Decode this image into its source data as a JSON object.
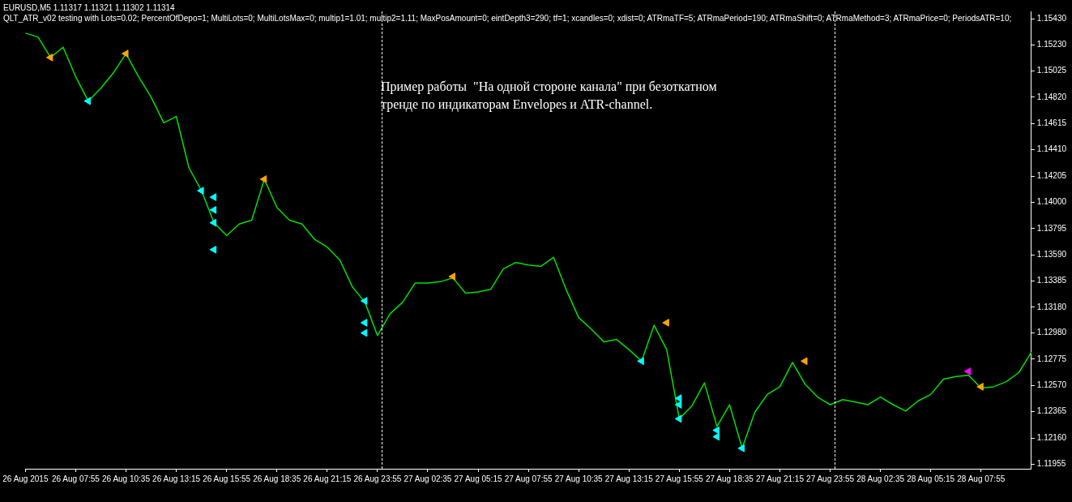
{
  "chart_data": {
    "type": "line",
    "title": "EURUSD,M5  1.11317 1.11321 1.11302 1.11314",
    "subtitle": "QLT_ATR_v02 testing with Lots=0.02; PercentOfDepo=1; MultiLots=0; MultiLotsMax=0; multip1=1.01; multip2=1.11; MaxPosAmount=0; eintDepth3=290; tf=1; xcandles=0; xdist=0; ATRmaTF=5; ATRmaPeriod=190; ATRmaShift=0; ATRmaMethod=3; ATRmaPrice=0; PeriodsATR=10;",
    "annotations": [
      "Пример работы  \"На одной стороне канала\" при безоткатном\nтренде по индикаторам Envelopes и ATR-channel."
    ],
    "categories": [
      "26 Aug 2015",
      null,
      null,
      null,
      "26 Aug 07:55",
      null,
      null,
      null,
      "26 Aug 10:35",
      null,
      null,
      null,
      "26 Aug 13:15",
      null,
      null,
      null,
      "26 Aug 15:55",
      null,
      null,
      null,
      "26 Aug 18:35",
      null,
      null,
      null,
      "26 Aug 21:15",
      null,
      null,
      null,
      "26 Aug 23:55",
      null,
      null,
      null,
      "27 Aug 02:35",
      null,
      null,
      null,
      "27 Aug 05:15",
      null,
      null,
      null,
      "27 Aug 07:55",
      null,
      null,
      null,
      "27 Aug 10:35",
      null,
      null,
      null,
      "27 Aug 13:15",
      null,
      null,
      null,
      "27 Aug 15:55",
      null,
      null,
      null,
      "27 Aug 18:35",
      null,
      null,
      null,
      "27 Aug 21:15",
      null,
      null,
      null,
      "27 Aug 23:55",
      null,
      null,
      null,
      "28 Aug 02:35",
      null,
      null,
      null,
      "28 Aug 05:15",
      null,
      null,
      null,
      "28 Aug 07:55",
      null,
      null,
      null,
      null
    ],
    "ylim": [
      1.1192,
      1.1549
    ],
    "yticks": [
      {
        "value": 1.1543,
        "label": "1.15430"
      },
      {
        "value": 1.1523,
        "label": "1.15230"
      },
      {
        "value": 1.15025,
        "label": "1.15025"
      },
      {
        "value": 1.1482,
        "label": "1.14820"
      },
      {
        "value": 1.14615,
        "label": "1.14615"
      },
      {
        "value": 1.1441,
        "label": "1.14410"
      },
      {
        "value": 1.14205,
        "label": "1.14205"
      },
      {
        "value": 1.14,
        "label": "1.14000"
      },
      {
        "value": 1.13795,
        "label": "1.13795"
      },
      {
        "value": 1.1359,
        "label": "1.13590"
      },
      {
        "value": 1.13385,
        "label": "1.13385"
      },
      {
        "value": 1.1318,
        "label": "1.13180"
      },
      {
        "value": 1.1298,
        "label": "1.12980"
      },
      {
        "value": 1.12775,
        "label": "1.12775"
      },
      {
        "value": 1.1257,
        "label": "1.12570"
      },
      {
        "value": 1.12365,
        "label": "1.12365"
      },
      {
        "value": 1.1216,
        "label": "1.12160"
      },
      {
        "value": 1.11955,
        "label": "1.11955"
      }
    ],
    "grid": false,
    "legend": false,
    "series": [
      {
        "type": "line",
        "color": "#00e000",
        "marker": "none",
        "values": [
          1.1532,
          1.1529,
          1.1513,
          1.1521,
          1.1498,
          1.1479,
          1.1489,
          1.1501,
          1.1516,
          1.1498,
          1.1482,
          1.1462,
          1.1467,
          1.1427,
          1.1409,
          1.1384,
          1.1374,
          1.1383,
          1.1386,
          1.1418,
          1.1396,
          1.1386,
          1.1383,
          1.1371,
          1.1365,
          1.1355,
          1.1334,
          1.1322,
          1.1296,
          1.1313,
          1.1322,
          1.1337,
          1.1337,
          1.1338,
          1.1341,
          1.1329,
          1.133,
          1.1332,
          1.1348,
          1.1353,
          1.1351,
          1.135,
          1.1357,
          1.1332,
          1.131,
          1.1301,
          1.1291,
          1.1293,
          1.1285,
          1.1276,
          1.1304,
          1.1285,
          1.1231,
          1.1241,
          1.1259,
          1.1225,
          1.1242,
          1.1208,
          1.1236,
          1.125,
          1.1256,
          1.1275,
          1.1258,
          1.1248,
          1.1242,
          1.1246,
          1.1244,
          1.1242,
          1.1248,
          1.1242,
          1.1237,
          1.1245,
          1.125,
          1.1262,
          1.1264,
          1.1265,
          1.1255,
          1.1256,
          1.126,
          1.1267,
          1.1283
        ]
      },
      {
        "type": "scatter",
        "color": "#ffa500",
        "marker": "triangle",
        "values": [
          null,
          null,
          1.1513,
          null,
          null,
          null,
          null,
          null,
          1.1516,
          null,
          null,
          null,
          null,
          null,
          null,
          null,
          null,
          null,
          null,
          1.1418,
          null,
          null,
          null,
          null,
          null,
          null,
          null,
          null,
          null,
          null,
          null,
          null,
          null,
          null,
          1.1342,
          null,
          null,
          null,
          null,
          null,
          null,
          null,
          null,
          null,
          null,
          null,
          null,
          null,
          null,
          null,
          null,
          1.1306,
          null,
          null,
          null,
          null,
          null,
          null,
          null,
          null,
          null,
          null,
          1.1276,
          null,
          null,
          null,
          null,
          null,
          null,
          null,
          null,
          null,
          null,
          null,
          null,
          null,
          1.1256,
          null,
          null,
          null,
          null
        ]
      },
      {
        "type": "scatter",
        "color": "#00ffff",
        "marker": "triangle",
        "values": [
          null,
          null,
          null,
          null,
          null,
          1.1479,
          null,
          null,
          null,
          null,
          null,
          null,
          null,
          null,
          1.1409,
          1.1404,
          null,
          null,
          null,
          null,
          null,
          null,
          null,
          null,
          null,
          null,
          null,
          1.1323,
          null,
          null,
          null,
          null,
          null,
          null,
          null,
          null,
          null,
          null,
          null,
          null,
          null,
          null,
          null,
          null,
          null,
          null,
          null,
          null,
          null,
          1.1276,
          null,
          null,
          1.1247,
          null,
          null,
          1.1222,
          null,
          1.1208,
          null,
          null,
          null,
          null,
          null,
          null,
          null,
          null,
          null,
          null,
          null,
          null,
          null,
          null,
          null,
          null,
          null,
          null,
          null,
          null,
          null,
          null,
          null
        ]
      },
      {
        "type": "scatter",
        "color": "#00ffff",
        "marker": "triangle",
        "values": [
          null,
          null,
          null,
          null,
          null,
          null,
          null,
          null,
          null,
          null,
          null,
          null,
          null,
          null,
          null,
          1.1394,
          null,
          null,
          null,
          null,
          null,
          null,
          null,
          null,
          null,
          null,
          null,
          1.1306,
          null,
          null,
          null,
          null,
          null,
          null,
          null,
          null,
          null,
          null,
          null,
          null,
          null,
          null,
          null,
          null,
          null,
          null,
          null,
          null,
          null,
          null,
          null,
          null,
          1.1242,
          null,
          null,
          1.1217,
          null,
          null,
          null,
          null,
          null,
          null,
          null,
          null,
          null,
          null,
          null,
          null,
          null,
          null,
          null,
          null,
          null,
          null,
          null,
          null,
          null,
          null,
          null,
          null,
          null
        ]
      },
      {
        "type": "scatter",
        "color": "#00ffff",
        "marker": "triangle",
        "values": [
          null,
          null,
          null,
          null,
          null,
          null,
          null,
          null,
          null,
          null,
          null,
          null,
          null,
          null,
          null,
          1.1384,
          null,
          null,
          null,
          null,
          null,
          null,
          null,
          null,
          null,
          null,
          null,
          1.1298,
          null,
          null,
          null,
          null,
          null,
          null,
          null,
          null,
          null,
          null,
          null,
          null,
          null,
          null,
          null,
          null,
          null,
          null,
          null,
          null,
          null,
          null,
          null,
          null,
          1.1231,
          null,
          null,
          null,
          null,
          null,
          null,
          null,
          null,
          null,
          null,
          null,
          null,
          null,
          null,
          null,
          null,
          null,
          null,
          null,
          null,
          null,
          null,
          null,
          null,
          null,
          null,
          null,
          null
        ]
      },
      {
        "type": "scatter",
        "color": "#00ffff",
        "marker": "triangle",
        "values": [
          null,
          null,
          null,
          null,
          null,
          null,
          null,
          null,
          null,
          null,
          null,
          null,
          null,
          null,
          null,
          1.1363,
          null,
          null,
          null,
          null,
          null,
          null,
          null,
          null,
          null,
          null,
          null,
          null,
          null,
          null,
          null,
          null,
          null,
          null,
          null,
          null,
          null,
          null,
          null,
          null,
          null,
          null,
          null,
          null,
          null,
          null,
          null,
          null,
          null,
          null,
          null,
          null,
          null,
          null,
          null,
          null,
          null,
          null,
          null,
          null,
          null,
          null,
          null,
          null,
          null,
          null,
          null,
          null,
          null,
          null,
          null,
          null,
          null,
          null,
          null,
          null,
          null,
          null,
          null,
          null,
          null
        ]
      },
      {
        "type": "scatter",
        "color": "#ff00ff",
        "marker": "triangle",
        "values": [
          null,
          null,
          null,
          null,
          null,
          null,
          null,
          null,
          null,
          null,
          null,
          null,
          null,
          null,
          null,
          null,
          null,
          null,
          null,
          null,
          null,
          null,
          null,
          null,
          null,
          null,
          null,
          null,
          null,
          null,
          null,
          null,
          null,
          null,
          null,
          null,
          null,
          null,
          null,
          null,
          null,
          null,
          null,
          null,
          null,
          null,
          null,
          null,
          null,
          null,
          null,
          null,
          null,
          null,
          null,
          null,
          null,
          null,
          null,
          null,
          null,
          null,
          null,
          null,
          null,
          null,
          null,
          null,
          null,
          null,
          null,
          null,
          null,
          null,
          null,
          1.1268,
          null,
          null,
          null,
          null,
          null
        ]
      }
    ]
  }
}
